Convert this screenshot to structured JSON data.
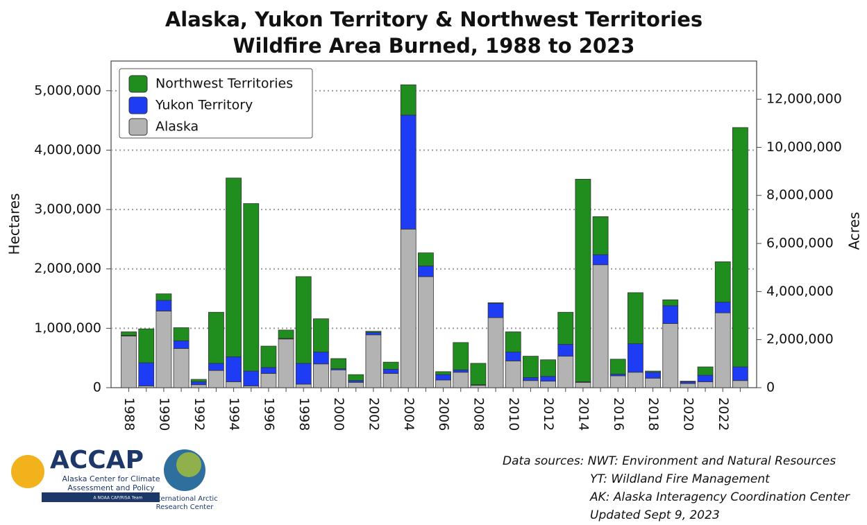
{
  "chart_data": {
    "type": "stacked_bar",
    "title": [
      "Alaska, Yukon Territory & Northwest Territories",
      "Wildfire Area Burned, 1988 to 2023"
    ],
    "ylabel": "Hectares",
    "y2label": "Acres",
    "categories": [
      "1988",
      null,
      "1990",
      null,
      "1992",
      null,
      "1994",
      null,
      "1996",
      null,
      "1998",
      null,
      "2000",
      null,
      "2002",
      null,
      "2004",
      null,
      "2006",
      null,
      "2008",
      null,
      "2010",
      null,
      "2012",
      null,
      "2014",
      null,
      "2016",
      null,
      "2018",
      null,
      "2020",
      null,
      "2022",
      null
    ],
    "series": [
      {
        "name": "Alaska",
        "color": "#b3b3b3",
        "values": [
          870000,
          30000,
          1290000,
          660000,
          50000,
          290000,
          100000,
          30000,
          240000,
          820000,
          60000,
          400000,
          300000,
          90000,
          890000,
          240000,
          2670000,
          1870000,
          130000,
          260000,
          40000,
          1180000,
          450000,
          120000,
          110000,
          530000,
          90000,
          2070000,
          200000,
          260000,
          160000,
          1080000,
          70000,
          100000,
          1260000,
          120000
        ]
      },
      {
        "name": "Yukon Territory",
        "color": "#1f3cf5",
        "values": [
          10000,
          390000,
          180000,
          130000,
          50000,
          120000,
          420000,
          250000,
          100000,
          10000,
          350000,
          200000,
          20000,
          30000,
          40000,
          70000,
          1920000,
          180000,
          90000,
          40000,
          10000,
          240000,
          150000,
          50000,
          80000,
          200000,
          10000,
          170000,
          30000,
          480000,
          100000,
          300000,
          30000,
          110000,
          180000,
          230000
        ]
      },
      {
        "name": "Northwest Territories",
        "color": "#1f8e1f",
        "values": [
          60000,
          570000,
          110000,
          220000,
          40000,
          860000,
          3010000,
          2820000,
          360000,
          140000,
          1460000,
          560000,
          170000,
          100000,
          20000,
          120000,
          510000,
          220000,
          50000,
          460000,
          360000,
          10000,
          340000,
          360000,
          280000,
          540000,
          3410000,
          640000,
          250000,
          860000,
          20000,
          100000,
          10000,
          140000,
          680000,
          4030000
        ]
      }
    ],
    "ylim": [
      0,
      5500000
    ],
    "yticks": [
      0,
      {
        "value": 1000000,
        "label": "1,000,000"
      },
      {
        "value": 2000000,
        "label": "2,000,000"
      },
      {
        "value": 3000000,
        "label": "3,000,000"
      },
      {
        "value": 4000000,
        "label": "4,000,000"
      },
      {
        "value": 5000000,
        "label": "5,000,000"
      }
    ],
    "y2lim": [
      0,
      13590500
    ],
    "y2ticks": [
      0,
      {
        "value": 2000000,
        "label": "2,000,000"
      },
      {
        "value": 4000000,
        "label": "4,000,000"
      },
      {
        "value": 6000000,
        "label": "6,000,000"
      },
      {
        "value": 8000000,
        "label": "8,000,000"
      },
      {
        "value": 10000000,
        "label": "10,000,000"
      },
      {
        "value": 12000000,
        "label": "12,000,000"
      }
    ],
    "grid": true,
    "legend": "upper left",
    "sources": [
      "Data sources: NWT: Environment and Natural Resources",
      "YT: Wildland Fire Management",
      "AK: Alaska Interagency Coordination Center",
      "Updated Sept 9, 2023"
    ],
    "logos": {
      "accap": [
        "ACCAP",
        "Alaska Center for Climate",
        "Assessment and Policy",
        "A NOAA CAP/RISA Team"
      ],
      "iarc": [
        "International Arctic",
        "Research Center"
      ]
    }
  }
}
